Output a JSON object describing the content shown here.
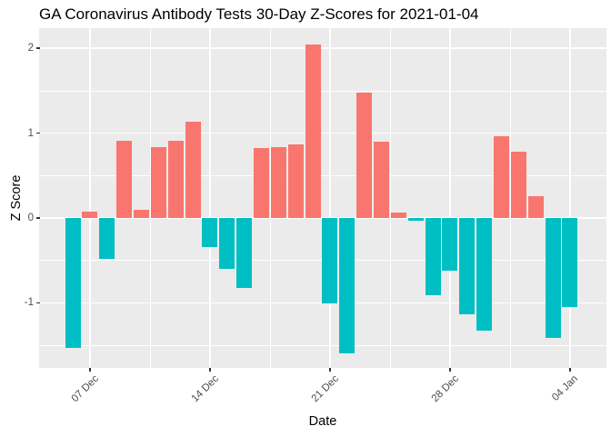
{
  "chart_data": {
    "type": "bar",
    "title": "GA Coronavirus Antibody Tests 30-Day Z-Scores for 2021-01-04",
    "xlabel": "Date",
    "ylabel": "Z Score",
    "categories": [
      "2020-12-06",
      "2020-12-07",
      "2020-12-08",
      "2020-12-09",
      "2020-12-10",
      "2020-12-11",
      "2020-12-12",
      "2020-12-13",
      "2020-12-14",
      "2020-12-15",
      "2020-12-16",
      "2020-12-17",
      "2020-12-18",
      "2020-12-19",
      "2020-12-20",
      "2020-12-21",
      "2020-12-22",
      "2020-12-23",
      "2020-12-24",
      "2020-12-25",
      "2020-12-26",
      "2020-12-27",
      "2020-12-28",
      "2020-12-29",
      "2020-12-30",
      "2020-12-31",
      "2021-01-01",
      "2021-01-02",
      "2021-01-03",
      "2021-01-04"
    ],
    "values": [
      -1.53,
      0.08,
      -0.48,
      0.91,
      0.1,
      0.84,
      0.91,
      1.13,
      -0.34,
      -0.6,
      -0.82,
      0.82,
      0.84,
      0.87,
      2.04,
      -1.01,
      -1.6,
      1.48,
      0.9,
      0.06,
      -0.03,
      -0.91,
      -0.62,
      -1.13,
      -1.33,
      0.96,
      0.78,
      0.26,
      -1.41,
      -1.05
    ],
    "x_tick_labels": [
      "07 Dec",
      "14 Dec",
      "21 Dec",
      "28 Dec",
      "04 Jan"
    ],
    "x_tick_dates": [
      "2020-12-07",
      "2020-12-14",
      "2020-12-21",
      "2020-12-28",
      "2021-01-04"
    ],
    "y_tick_labels": [
      "2",
      "1",
      "0",
      "-1"
    ],
    "y_tick_values": [
      2,
      1,
      0,
      -1
    ],
    "y_minor_tick_values": [
      1.5,
      0.5,
      -0.5,
      -1.5
    ],
    "ylim": [
      -1.77,
      2.24
    ],
    "grid": true,
    "legend": "none",
    "colors": {
      "positive_bar": "#F8766D",
      "negative_bar": "#00BFC4",
      "panel_bg": "#EBEBEB",
      "grid": "#FFFFFF",
      "tick_text": "#4D4D4D",
      "tick_mark": "#333333",
      "title_text": "#000000"
    }
  }
}
